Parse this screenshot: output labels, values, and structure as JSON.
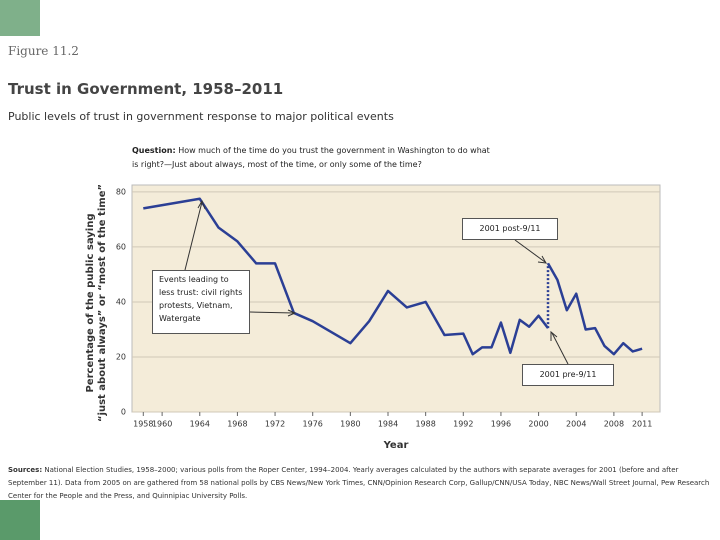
{
  "figure_label": "Figure 11.2",
  "chart_data": {
    "type": "line",
    "title": "Trust in Government, 1958–2011",
    "subtitle": "Public levels of trust in government response to major political events",
    "question_label": "Question:",
    "question": "How much of the time do you trust the government in Washington to do what is right?—Just about always, most of the time, or only some of the time?",
    "y_label": [
      "Percentage of the public saying",
      "“just about always” or “most of the time”"
    ],
    "x_label": "Year",
    "x": [
      1958,
      1964,
      1966,
      1968,
      1970,
      1972,
      1974,
      1976,
      1978,
      1980,
      1982,
      1984,
      1986,
      1988,
      1990,
      1992,
      1993,
      1994,
      1995,
      1996,
      1997,
      1998,
      1999,
      2000,
      2001,
      2001,
      2002,
      2003,
      2004,
      2005,
      2006,
      2007,
      2008,
      2009,
      2010,
      2011
    ],
    "values": [
      74,
      77.5,
      67,
      62,
      54,
      54,
      36,
      33,
      29,
      25,
      33,
      44,
      38,
      40,
      28,
      28.5,
      21,
      23.5,
      23.5,
      32.5,
      21.5,
      33.5,
      31,
      35,
      30.5,
      54,
      48,
      37,
      43,
      30,
      30.5,
      24,
      21,
      25,
      22,
      23
    ],
    "color": "#2b3f95",
    "xlim": [
      1956.8,
      2012.9
    ],
    "ylim": [
      0,
      82.5
    ],
    "xticks": [
      1958,
      1960,
      1964,
      1968,
      1972,
      1976,
      1980,
      1984,
      1988,
      1992,
      1996,
      2000,
      2004,
      2008,
      2011
    ],
    "yticks": [
      0,
      20,
      40,
      60,
      80
    ],
    "grid": true,
    "annotations": [
      {
        "text": "Events leading to less trust: civil rights protests, Vietnam, Watergate"
      },
      {
        "text": "2001 post-9/11"
      },
      {
        "text": "2001 pre-9/11"
      }
    ]
  },
  "sources_label": "Sources:",
  "sources": "National Election Studies, 1958–2000; various polls from the Roper Center, 1994–2004. Yearly averages calculated by the authors with separate averages for 2001 (before and after September 11). Data from 2005 on are gathered from 58 national polls by CBS News/New York Times, CNN/Opinion Research Corp, Gallup/CNN/USA Today, NBC News/Wall Street Journal, Pew Research Center for the People and the Press, and Quinnipiac University Polls."
}
